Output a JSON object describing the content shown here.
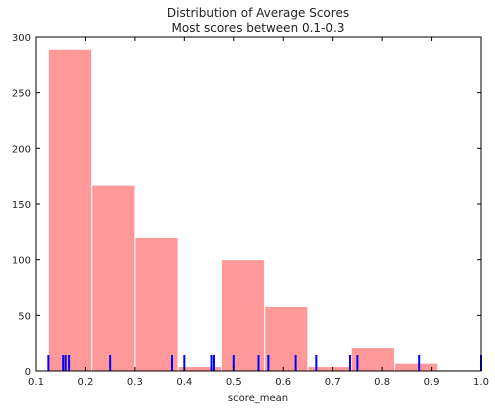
{
  "chart_data": {
    "type": "bar",
    "title": "Distribution of Average Scores",
    "subtitle": "Most scores between 0.1-0.3",
    "xlabel": "score_mean",
    "ylabel": "",
    "xlim": [
      0.1,
      1.0
    ],
    "ylim": [
      0,
      300
    ],
    "x_ticks": [
      "0.1",
      "0.2",
      "0.3",
      "0.4",
      "0.5",
      "0.6",
      "0.7",
      "0.8",
      "0.9",
      "1.0"
    ],
    "y_ticks": [
      "0",
      "50",
      "100",
      "150",
      "200",
      "250",
      "300"
    ],
    "bins": [
      {
        "x0": 0.125,
        "x1": 0.2125,
        "count": 289
      },
      {
        "x0": 0.2125,
        "x1": 0.3,
        "count": 167
      },
      {
        "x0": 0.3,
        "x1": 0.3875,
        "count": 120
      },
      {
        "x0": 0.3875,
        "x1": 0.475,
        "count": 4
      },
      {
        "x0": 0.475,
        "x1": 0.5625,
        "count": 100
      },
      {
        "x0": 0.5625,
        "x1": 0.65,
        "count": 58
      },
      {
        "x0": 0.65,
        "x1": 0.7375,
        "count": 4
      },
      {
        "x0": 0.7375,
        "x1": 0.825,
        "count": 21
      },
      {
        "x0": 0.825,
        "x1": 0.9125,
        "count": 7
      },
      {
        "x0": 0.9125,
        "x1": 1.0,
        "count": 1
      }
    ],
    "rug": [
      0.125,
      0.155,
      0.16,
      0.167,
      0.25,
      0.375,
      0.4,
      0.455,
      0.46,
      0.5,
      0.55,
      0.57,
      0.625,
      0.667,
      0.735,
      0.75,
      0.875,
      1.0
    ],
    "bar_color": "#ff9999",
    "rug_color": "#0000ff",
    "grid": false
  }
}
